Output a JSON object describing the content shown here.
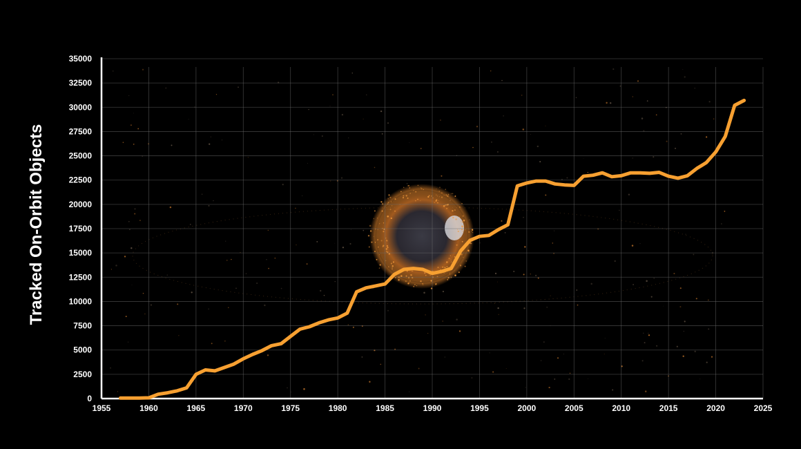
{
  "chart_data": {
    "type": "line",
    "title": "",
    "xlabel": "",
    "ylabel": "Tracked On-Orbit Objects",
    "xlim": [
      1955,
      2025
    ],
    "ylim": [
      0,
      35000
    ],
    "x_ticks": [
      "1955",
      "1960",
      "1965",
      "1970",
      "1975",
      "1980",
      "1985",
      "1990",
      "1995",
      "2000",
      "2005",
      "2010",
      "2015",
      "2020",
      "2025"
    ],
    "y_ticks": [
      "0",
      "2500",
      "5000",
      "7500",
      "10000",
      "12500",
      "15000",
      "17500",
      "20000",
      "22500",
      "25000",
      "27500",
      "30000",
      "32500",
      "35000"
    ],
    "grid": true,
    "legend": "none",
    "colors": {
      "line": "#f7a031",
      "background": "#000000",
      "grid": "#6e6e6e",
      "axis": "#ffffff",
      "globe": "#e8892e"
    },
    "series": [
      {
        "x": [
          1957,
          1958,
          1959,
          1960,
          1961,
          1962,
          1963,
          1964,
          1965,
          1966,
          1967,
          1968,
          1969,
          1970,
          1971,
          1972,
          1973,
          1974,
          1975,
          1976,
          1977,
          1978,
          1979,
          1980,
          1981,
          1982,
          1983,
          1984,
          1985,
          1986,
          1987,
          1988,
          1989,
          1990,
          1991,
          1992,
          1993,
          1994,
          1995,
          1996,
          1997,
          1998,
          1999,
          2000,
          2001,
          2002,
          2003,
          2004,
          2005,
          2006,
          2007,
          2008,
          2009,
          2010,
          2011,
          2012,
          2013,
          2014,
          2015,
          2016,
          2017,
          2018,
          2019,
          2020,
          2021,
          2022,
          2023
        ],
        "values": [
          50,
          50,
          50,
          80,
          450,
          600,
          800,
          1100,
          2500,
          2950,
          2850,
          3200,
          3550,
          4100,
          4550,
          4950,
          5450,
          5650,
          6400,
          7150,
          7400,
          7800,
          8100,
          8300,
          8800,
          11000,
          11400,
          11600,
          11800,
          12800,
          13300,
          13400,
          13300,
          12900,
          13100,
          13400,
          15200,
          16300,
          16700,
          16800,
          17400,
          17900,
          21900,
          22200,
          22400,
          22400,
          22100,
          22000,
          21950,
          22900,
          23000,
          23250,
          22850,
          22950,
          23250,
          23250,
          23200,
          23300,
          22900,
          22700,
          22950,
          23700,
          24300,
          25400,
          27000,
          30200,
          30700
        ]
      }
    ]
  }
}
